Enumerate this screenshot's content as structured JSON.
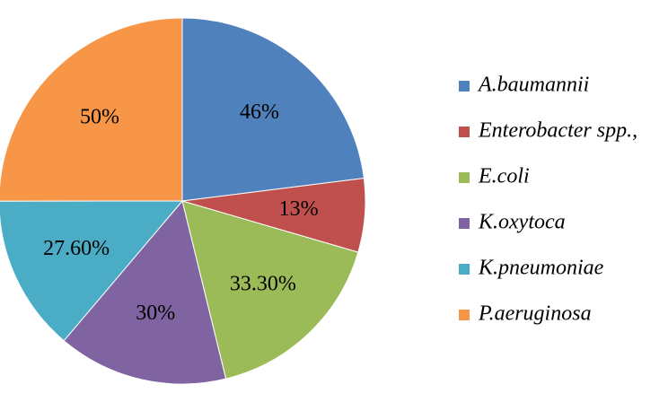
{
  "chart_data": {
    "type": "pie",
    "categories": [
      "A.baumannii",
      "Enterobacter spp.,",
      "E.coli",
      "K.oxytoca",
      "K.pneumoniae",
      "P.aeruginosa"
    ],
    "values": [
      46,
      13,
      33.3,
      30,
      27.6,
      50
    ],
    "labels": [
      "46%",
      "13%",
      "33.30%",
      "30%",
      "27.60%",
      "50%"
    ],
    "colors": [
      "#4F81BD",
      "#C0504D",
      "#9BBB59",
      "#8064A2",
      "#4BACC6",
      "#F79646"
    ],
    "start_angle_deg": 0,
    "direction": "clockwise",
    "legend_position": "right"
  }
}
